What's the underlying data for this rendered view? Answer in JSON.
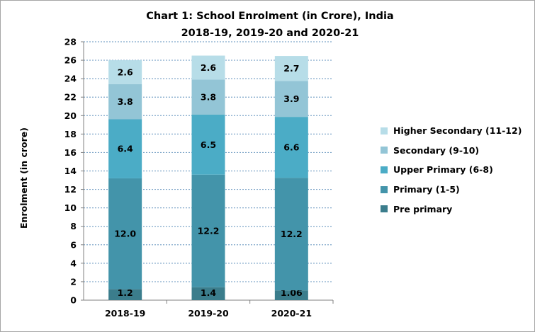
{
  "chart_data": {
    "type": "bar",
    "stacked": true,
    "title": "Chart 1: School Enrolment (in Crore), India",
    "subtitle": "2018-19, 2019-20 and 2020-21",
    "xlabel": "",
    "ylabel": "Enrolment (in crore)",
    "ylim": [
      0,
      28
    ],
    "yticks": [
      0,
      2,
      4,
      6,
      8,
      10,
      12,
      14,
      16,
      18,
      20,
      22,
      24,
      26,
      28
    ],
    "grid": true,
    "legend_position": "right",
    "categories": [
      "2018-19",
      "2019-20",
      "2020-21"
    ],
    "series": [
      {
        "name": "Pre primary",
        "values": [
          1.2,
          1.4,
          1.06
        ],
        "labels": [
          "1.2",
          "1.4",
          "1.06"
        ],
        "color": "#3b7d8c"
      },
      {
        "name": "Primary (1-5)",
        "values": [
          12.0,
          12.2,
          12.2
        ],
        "labels": [
          "12.0",
          "12.2",
          "12.2"
        ],
        "color": "#4394aa"
      },
      {
        "name": "Upper Primary (6-8)",
        "values": [
          6.4,
          6.5,
          6.6
        ],
        "labels": [
          "6.4",
          "6.5",
          "6.6"
        ],
        "color": "#4bacc6"
      },
      {
        "name": "Secondary (9-10)",
        "values": [
          3.8,
          3.8,
          3.9
        ],
        "labels": [
          "3.8",
          "3.8",
          "3.9"
        ],
        "color": "#93c5d6"
      },
      {
        "name": "Higher Secondary (11-12)",
        "values": [
          2.6,
          2.6,
          2.7
        ],
        "labels": [
          "2.6",
          "2.6",
          "2.7"
        ],
        "color": "#b7dde8"
      }
    ]
  }
}
